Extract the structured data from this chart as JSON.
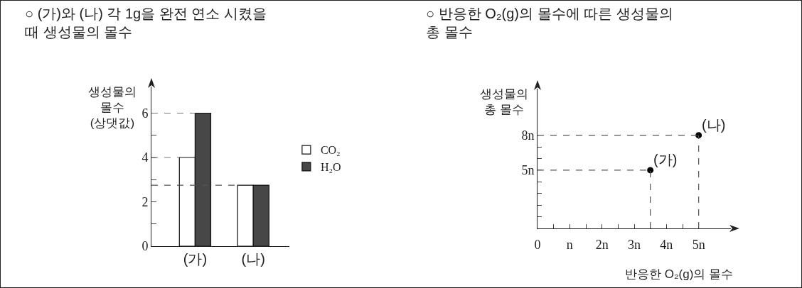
{
  "chart_data": [
    {
      "type": "bar",
      "title": "○ (가)와 (나) 각 1g을 완전 연소 시켰을\n때 생성물의 몰수",
      "ylabel": "생성물의\n몰수\n(상댓값)",
      "categories": [
        "(가)",
        "(나)"
      ],
      "series": [
        {
          "name": "CO₂",
          "color": "#ffffff",
          "values": [
            4,
            2.75
          ]
        },
        {
          "name": "H₂O",
          "color": "#474747",
          "values": [
            6,
            2.75
          ]
        }
      ],
      "ylim": [
        0,
        7.2
      ],
      "yticks": [
        0,
        {
          "value": 1,
          "label": null
        },
        2,
        {
          "value": 3,
          "label": null
        },
        4,
        {
          "value": 5,
          "label": null
        },
        6
      ],
      "ref_lines": [
        {
          "axis": "y",
          "value": 6,
          "color": "#777777",
          "line_style": "dashed"
        },
        {
          "axis": "y",
          "value": 4,
          "color": "#777777",
          "line_style": "dashed"
        },
        {
          "axis": "y",
          "value": 2.75,
          "color": "#555555",
          "line_style": "dashed"
        }
      ],
      "legend": "right",
      "grid": false
    },
    {
      "type": "scatter",
      "title": "○ 반응한 O₂(g)의 몰수에 따른 생성물의\n총 몰수",
      "xlabel": "반응한 O₂(g)의 몰수",
      "ylabel": "생성물의\n총 몰수",
      "x": [
        3.5,
        5
      ],
      "series": [
        {
          "color": "#000000",
          "values": [
            5,
            8
          ]
        }
      ],
      "marker": "circle",
      "annotations": [
        {
          "text": "(가)",
          "x": 3.5,
          "y": 5
        },
        {
          "text": "(나)",
          "x": 5,
          "y": 8
        }
      ],
      "xlim": [
        0,
        6
      ],
      "ylim": [
        0,
        12
      ],
      "xticks": [
        0,
        {
          "value": 0.5,
          "label": null
        },
        {
          "value": 1,
          "label": "n"
        },
        {
          "value": 1.5,
          "label": null
        },
        {
          "value": 2,
          "label": "2n"
        },
        {
          "value": 2.5,
          "label": null
        },
        {
          "value": 3,
          "label": "3n"
        },
        {
          "value": 3.5,
          "label": null
        },
        {
          "value": 4,
          "label": "4n"
        },
        {
          "value": 4.5,
          "label": null
        },
        {
          "value": 5,
          "label": "5n"
        }
      ],
      "yticks": [
        {
          "value": 1,
          "label": null
        },
        {
          "value": 2,
          "label": null
        },
        {
          "value": 3,
          "label": null
        },
        {
          "value": 4,
          "label": null
        },
        {
          "value": 5,
          "label": "5n"
        },
        {
          "value": 6,
          "label": null
        },
        {
          "value": 7,
          "label": null
        },
        {
          "value": 8,
          "label": "8n"
        }
      ],
      "ref_lines": [
        {
          "axis": "y",
          "value": 5,
          "color": "#555555",
          "line_style": "dashed"
        },
        {
          "axis": "y",
          "value": 8,
          "color": "#555555",
          "line_style": "dashed"
        },
        {
          "axis": "x",
          "value": 3.5,
          "color": "#555555",
          "line_style": "dashed"
        },
        {
          "axis": "x",
          "value": 5,
          "color": "#555555",
          "line_style": "dashed"
        }
      ],
      "legend": false,
      "grid": false
    }
  ]
}
